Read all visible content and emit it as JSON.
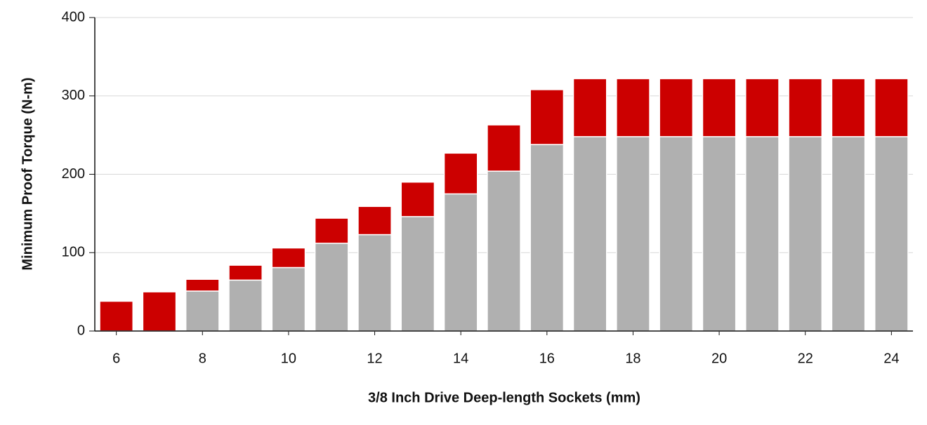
{
  "chart_data": {
    "type": "stacked-bar",
    "x_label": "3/8 Inch Drive Deep-length Sockets (mm)",
    "y_label": "Minimum Proof Torque (N-m)",
    "x": [
      6,
      7,
      8,
      9,
      10,
      11,
      12,
      13,
      14,
      15,
      16,
      17,
      18,
      19,
      20,
      21,
      22,
      23,
      24
    ],
    "series": [
      {
        "color": "#b0b0b0",
        "values": [
          0,
          0,
          51,
          65,
          81,
          112,
          123,
          146,
          175,
          204,
          238,
          248,
          248,
          248,
          248,
          248,
          248,
          248,
          248
        ]
      },
      {
        "color": "#cc0000",
        "values": [
          38,
          50,
          15,
          19,
          25,
          32,
          36,
          44,
          52,
          59,
          70,
          74,
          74,
          74,
          74,
          74,
          74,
          74,
          74
        ]
      }
    ],
    "xlim": [
      5.5,
      24.5
    ],
    "xticks": [
      6,
      8,
      10,
      12,
      14,
      16,
      18,
      20,
      22,
      24
    ],
    "ylim": [
      0,
      400
    ],
    "yticks": [
      0,
      100,
      200,
      300,
      400
    ],
    "grid": true
  }
}
